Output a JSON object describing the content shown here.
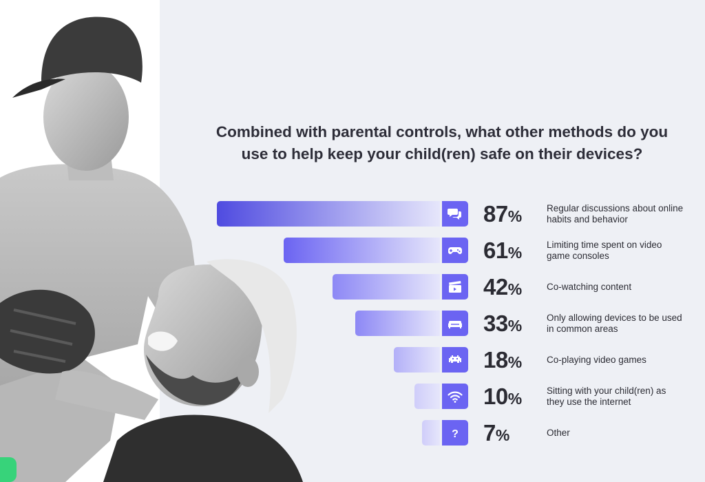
{
  "chart_data": {
    "type": "bar",
    "orientation": "horizontal",
    "title": "Combined with parental controls, what other methods do you use to help keep your child(ren) safe on their devices?",
    "unit": "%",
    "series": [
      {
        "label": "Regular discussions about online habits and behavior",
        "value": 87,
        "icon": "chat-bubbles-icon"
      },
      {
        "label": "Limiting time spent on video game consoles",
        "value": 61,
        "icon": "gamepad-icon"
      },
      {
        "label": "Co-watching content",
        "value": 42,
        "icon": "clapperboard-icon"
      },
      {
        "label": "Only allowing devices to be used in common areas",
        "value": 33,
        "icon": "sofa-icon"
      },
      {
        "label": "Co-playing video games",
        "value": 18,
        "icon": "space-invader-icon"
      },
      {
        "label": "Sitting with your child(ren) as they use the internet",
        "value": 10,
        "icon": "wifi-icon"
      },
      {
        "label": "Other",
        "value": 7,
        "icon": "question-icon"
      }
    ],
    "xlim": [
      0,
      100
    ]
  },
  "colors": {
    "bar_dark": "#4f4be0",
    "bar_mid": "#6b64f2",
    "bar_light": "#e6e6fb",
    "icon_bg": "#6b64f2",
    "accent": "#37d37a"
  }
}
